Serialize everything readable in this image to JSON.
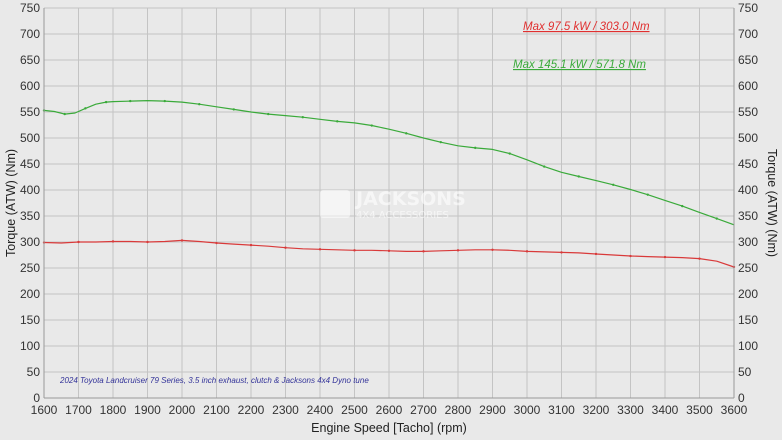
{
  "chart_data": {
    "type": "line",
    "xlabel": "Engine Speed [Tacho] (rpm)",
    "ylabel_left": "Torque (ATW) (Nm)",
    "ylabel_right": "Torque (ATW) (Nm)",
    "xlim": [
      1600,
      3600
    ],
    "ylim": [
      0,
      750
    ],
    "xticks": [
      1600,
      1700,
      1800,
      1900,
      2000,
      2100,
      2200,
      2300,
      2400,
      2500,
      2600,
      2700,
      2800,
      2900,
      3000,
      3100,
      3200,
      3300,
      3400,
      3500,
      3600
    ],
    "yticks": [
      0,
      50,
      100,
      150,
      200,
      250,
      300,
      350,
      400,
      450,
      500,
      550,
      600,
      650,
      700,
      750
    ],
    "grid": true,
    "series": [
      {
        "color": "#d93a3a",
        "x": [
          1600,
          1650,
          1700,
          1750,
          1800,
          1850,
          1900,
          1950,
          2000,
          2050,
          2100,
          2150,
          2200,
          2250,
          2300,
          2350,
          2400,
          2450,
          2500,
          2550,
          2600,
          2650,
          2700,
          2750,
          2800,
          2850,
          2900,
          2950,
          3000,
          3050,
          3100,
          3150,
          3200,
          3250,
          3300,
          3350,
          3400,
          3450,
          3500,
          3550,
          3600
        ],
        "values": [
          299,
          298,
          300,
          300,
          301,
          301,
          300,
          301,
          303,
          301,
          298,
          296,
          294,
          292,
          289,
          287,
          286,
          285,
          284,
          284,
          283,
          282,
          282,
          283,
          284,
          285,
          285,
          284,
          282,
          281,
          280,
          279,
          277,
          275,
          273,
          272,
          271,
          270,
          268,
          263,
          252
        ]
      },
      {
        "color": "#3aaa3a",
        "x": [
          1600,
          1630,
          1660,
          1690,
          1720,
          1750,
          1780,
          1800,
          1850,
          1900,
          1950,
          2000,
          2050,
          2100,
          2150,
          2200,
          2250,
          2300,
          2350,
          2400,
          2450,
          2500,
          2550,
          2600,
          2650,
          2700,
          2750,
          2800,
          2850,
          2900,
          2950,
          3000,
          3050,
          3100,
          3150,
          3200,
          3250,
          3300,
          3350,
          3400,
          3450,
          3500,
          3550,
          3600
        ],
        "values": [
          553,
          551,
          546,
          548,
          557,
          565,
          569,
          570,
          571,
          572,
          571,
          569,
          565,
          560,
          555,
          550,
          546,
          543,
          540,
          536,
          532,
          529,
          524,
          517,
          509,
          500,
          492,
          485,
          481,
          478,
          470,
          458,
          445,
          434,
          426,
          418,
          410,
          401,
          391,
          380,
          369,
          357,
          345,
          333
        ]
      }
    ],
    "annotations": [
      {
        "text": "Max 97.5 kW  / 303.0 Nm",
        "color": "#e03030"
      },
      {
        "text": "Max 145.1 kW  / 571.8 Nm",
        "color": "#3aaa3a"
      }
    ],
    "note": "2024 Toyota Landcruiser 79 Series, 3.5 inch exhaust, clutch & Jacksons 4x4 Dyno tune",
    "watermark": {
      "line1": "JACKSONS",
      "line2": "4X4 ACCESSORIES"
    }
  }
}
